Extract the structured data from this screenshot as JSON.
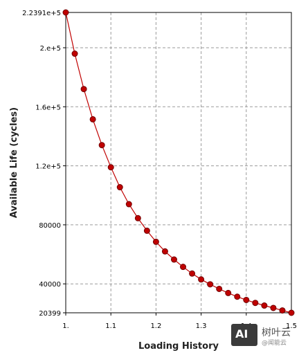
{
  "chart_data": {
    "type": "line",
    "title": "",
    "xlabel": "Loading History",
    "ylabel": "Available Life (cycles)",
    "xlim": [
      1.0,
      1.5
    ],
    "ylim": [
      20399,
      223910
    ],
    "x_ticks": [
      {
        "value": 1.0,
        "label": "1."
      },
      {
        "value": 1.1,
        "label": "1.1"
      },
      {
        "value": 1.2,
        "label": "1.2"
      },
      {
        "value": 1.3,
        "label": "1.3"
      },
      {
        "value": 1.4,
        "label": "1.4"
      },
      {
        "value": 1.5,
        "label": "1.5"
      }
    ],
    "y_ticks": [
      {
        "value": 223910,
        "label": "2.2391e+5"
      },
      {
        "value": 200000,
        "label": "2.e+5"
      },
      {
        "value": 160000,
        "label": "1.6e+5"
      },
      {
        "value": 120000,
        "label": "1.2e+5"
      },
      {
        "value": 80000,
        "label": "80000"
      },
      {
        "value": 40000,
        "label": "40000"
      },
      {
        "value": 20399,
        "label": "20399"
      }
    ],
    "grid": true,
    "series": [
      {
        "color": "#c00000",
        "x": [
          1.0,
          1.02,
          1.04,
          1.06,
          1.08,
          1.1,
          1.12,
          1.14,
          1.16,
          1.18,
          1.2,
          1.22,
          1.24,
          1.26,
          1.28,
          1.3,
          1.32,
          1.34,
          1.36,
          1.38,
          1.4,
          1.42,
          1.44,
          1.46,
          1.48,
          1.5
        ],
        "y": [
          223910,
          196000,
          172000,
          151500,
          134000,
          119000,
          105500,
          94000,
          84500,
          76000,
          68500,
          62000,
          56500,
          51500,
          47000,
          43000,
          39700,
          36600,
          33800,
          31300,
          29100,
          27100,
          25300,
          23700,
          22000,
          20399
        ]
      }
    ]
  },
  "watermark": {
    "badge": "AI",
    "name": "树叶云",
    "sub": "@闻能云"
  }
}
